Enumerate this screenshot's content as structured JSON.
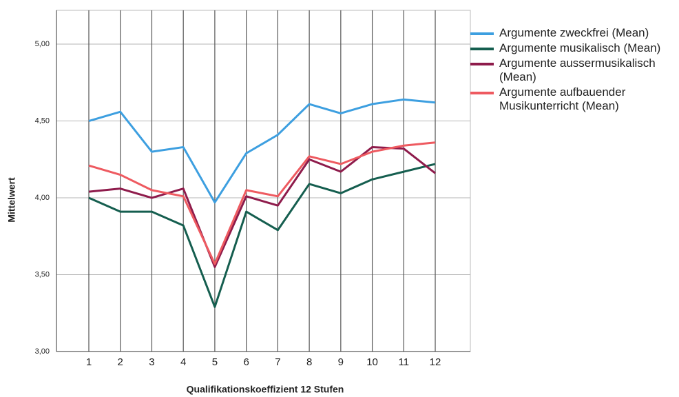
{
  "chart_data": {
    "type": "line",
    "x_label": "Qualifikationskoeffizient 12 Stufen",
    "y_label": "Mittelwert",
    "categories": [
      "1",
      "2",
      "3",
      "4",
      "5",
      "6",
      "7",
      "8",
      "9",
      "10",
      "11",
      "12"
    ],
    "series": [
      {
        "name": "Argumente zweckfrei (Mean)",
        "color": "#3d9fe0",
        "values": [
          4.5,
          4.56,
          4.3,
          4.33,
          3.97,
          4.29,
          4.41,
          4.61,
          4.55,
          4.61,
          4.64,
          4.62
        ]
      },
      {
        "name": "Argumente musikalisch (Mean)",
        "color": "#155e4f",
        "values": [
          4.0,
          3.91,
          3.91,
          3.82,
          3.29,
          3.91,
          3.79,
          4.09,
          4.03,
          4.12,
          4.17,
          4.22
        ]
      },
      {
        "name": "Argumente aussermusikalisch (Mean)",
        "color": "#8e1b4b",
        "values": [
          4.04,
          4.06,
          4.0,
          4.06,
          3.55,
          4.01,
          3.95,
          4.25,
          4.17,
          4.33,
          4.32,
          4.16
        ]
      },
      {
        "name": "Argumente aufbauender Musikunterricht (Mean)",
        "color": "#ee5a60",
        "values": [
          4.21,
          4.15,
          4.05,
          4.01,
          3.57,
          4.05,
          4.01,
          4.27,
          4.22,
          4.3,
          4.34,
          4.36
        ]
      }
    ],
    "ylim": [
      3,
      5.22
    ],
    "yticks": [
      {
        "value": 3,
        "label": "3,00"
      },
      {
        "value": 3.5,
        "label": "3,50"
      },
      {
        "value": 4,
        "label": "4,00"
      },
      {
        "value": 4.5,
        "label": "4,50"
      },
      {
        "value": 5,
        "label": "5,00"
      }
    ],
    "grid": true
  }
}
